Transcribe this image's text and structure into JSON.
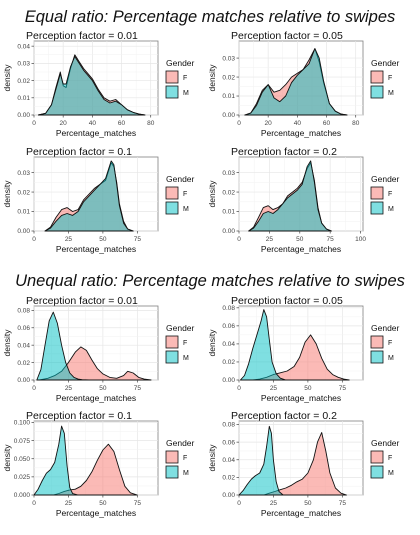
{
  "sections": [
    {
      "title": "Equal ratio: Percentage matches relative to swipes"
    },
    {
      "title": "Unequal ratio: Percentage matches relative to swipes"
    }
  ],
  "colors": {
    "F": "#F8766D",
    "M": "#00BFC4"
  },
  "chart_data": [
    {
      "type": "area",
      "section": 0,
      "title": "Perception factor = 0.01",
      "xlabel": "Percentage_matches",
      "ylabel": "density",
      "xlim": [
        0,
        85
      ],
      "ylim": [
        0,
        0.043
      ],
      "xticks": [
        0,
        20,
        40,
        60,
        80
      ],
      "yticks": [
        0.0,
        0.01,
        0.02,
        0.03,
        0.04
      ],
      "ytick_labels": [
        "0.00",
        "0.01",
        "0.02",
        "0.03",
        "0.04"
      ],
      "legend": {
        "title": "Gender",
        "entries": [
          "F",
          "M"
        ],
        "position": "right"
      },
      "series": [
        {
          "name": "F",
          "x": [
            3,
            8,
            12,
            15,
            18,
            20,
            22,
            25,
            28,
            31,
            34,
            37,
            40,
            44,
            48,
            52,
            56,
            60,
            64,
            68,
            72,
            76
          ],
          "y": [
            0,
            0.001,
            0.006,
            0.016,
            0.025,
            0.017,
            0.016,
            0.027,
            0.035,
            0.031,
            0.027,
            0.024,
            0.021,
            0.015,
            0.01,
            0.008,
            0.009,
            0.006,
            0.003,
            0.0015,
            0.0005,
            0
          ]
        },
        {
          "name": "M",
          "x": [
            3,
            8,
            12,
            15,
            18,
            20,
            22,
            25,
            28,
            31,
            34,
            37,
            40,
            44,
            48,
            52,
            56,
            60,
            64,
            68,
            72,
            76
          ],
          "y": [
            0,
            0.001,
            0.006,
            0.015,
            0.024,
            0.018,
            0.018,
            0.028,
            0.034,
            0.03,
            0.026,
            0.023,
            0.02,
            0.014,
            0.009,
            0.007,
            0.008,
            0.006,
            0.003,
            0.0015,
            0.0005,
            0
          ]
        }
      ]
    },
    {
      "type": "area",
      "section": 0,
      "title": "Perception factor = 0.05",
      "xlabel": "Percentage_matches",
      "ylabel": "density",
      "xlim": [
        0,
        85
      ],
      "ylim": [
        0,
        0.039
      ],
      "xticks": [
        0,
        20,
        40,
        60,
        80
      ],
      "yticks": [
        0.0,
        0.01,
        0.02,
        0.03
      ],
      "ytick_labels": [
        "0.00",
        "0.01",
        "0.02",
        "0.03"
      ],
      "legend": {
        "title": "Gender",
        "entries": [
          "F",
          "M"
        ],
        "position": "right"
      },
      "series": [
        {
          "name": "F",
          "x": [
            4,
            8,
            12,
            16,
            20,
            24,
            28,
            32,
            36,
            40,
            44,
            48,
            52,
            55,
            58,
            62,
            66,
            70,
            74
          ],
          "y": [
            0,
            0.001,
            0.006,
            0.013,
            0.016,
            0.012,
            0.013,
            0.016,
            0.02,
            0.022,
            0.024,
            0.029,
            0.035,
            0.028,
            0.017,
            0.006,
            0.002,
            0.0005,
            0
          ]
        },
        {
          "name": "M",
          "x": [
            4,
            8,
            12,
            16,
            20,
            24,
            28,
            32,
            36,
            40,
            44,
            48,
            52,
            55,
            58,
            62,
            66,
            70,
            74
          ],
          "y": [
            0,
            0.001,
            0.005,
            0.012,
            0.016,
            0.009,
            0.007,
            0.01,
            0.017,
            0.021,
            0.024,
            0.027,
            0.035,
            0.03,
            0.018,
            0.006,
            0.002,
            0.0005,
            0
          ]
        }
      ]
    },
    {
      "type": "area",
      "section": 0,
      "title": "Perception factor = 0.1",
      "xlabel": "Percentage_matches",
      "ylabel": "density",
      "xlim": [
        0,
        90
      ],
      "ylim": [
        0,
        0.038
      ],
      "xticks": [
        0,
        25,
        50,
        75
      ],
      "yticks": [
        0.0,
        0.01,
        0.02,
        0.03
      ],
      "ytick_labels": [
        "0.00",
        "0.01",
        "0.02",
        "0.03"
      ],
      "legend": {
        "title": "Gender",
        "entries": [
          "F",
          "M"
        ],
        "position": "right"
      },
      "series": [
        {
          "name": "F",
          "x": [
            8,
            12,
            16,
            20,
            24,
            28,
            32,
            36,
            40,
            44,
            48,
            52,
            56,
            58,
            60,
            62,
            65,
            68,
            72
          ],
          "y": [
            0,
            0.002,
            0.007,
            0.011,
            0.012,
            0.01,
            0.011,
            0.016,
            0.019,
            0.022,
            0.024,
            0.026,
            0.035,
            0.033,
            0.025,
            0.014,
            0.005,
            0.001,
            0
          ]
        },
        {
          "name": "M",
          "x": [
            8,
            12,
            16,
            20,
            24,
            28,
            32,
            36,
            40,
            44,
            48,
            52,
            56,
            58,
            60,
            62,
            65,
            68,
            72
          ],
          "y": [
            0,
            0.0015,
            0.005,
            0.008,
            0.009,
            0.008,
            0.01,
            0.015,
            0.018,
            0.021,
            0.024,
            0.027,
            0.036,
            0.034,
            0.024,
            0.013,
            0.004,
            0.001,
            0
          ]
        }
      ]
    },
    {
      "type": "area",
      "section": 0,
      "title": "Perception factor = 0.2",
      "xlabel": "Percentage_matches",
      "ylabel": "density",
      "xlim": [
        0,
        102
      ],
      "ylim": [
        0,
        0.038
      ],
      "xticks": [
        0,
        25,
        50,
        75,
        100
      ],
      "yticks": [
        0.0,
        0.01,
        0.02,
        0.03
      ],
      "ytick_labels": [
        "0.00",
        "0.01",
        "0.02",
        "0.03"
      ],
      "legend": {
        "title": "Gender",
        "entries": [
          "F",
          "M"
        ],
        "position": "right"
      },
      "series": [
        {
          "name": "F",
          "x": [
            8,
            12,
            16,
            20,
            24,
            28,
            32,
            36,
            40,
            44,
            48,
            52,
            56,
            59,
            62,
            65,
            68,
            72,
            76
          ],
          "y": [
            0,
            0.002,
            0.007,
            0.012,
            0.013,
            0.011,
            0.012,
            0.014,
            0.018,
            0.02,
            0.022,
            0.025,
            0.032,
            0.035,
            0.026,
            0.012,
            0.004,
            0.001,
            0
          ]
        },
        {
          "name": "M",
          "x": [
            8,
            12,
            16,
            20,
            24,
            28,
            32,
            36,
            40,
            44,
            48,
            52,
            56,
            59,
            62,
            65,
            68,
            72,
            76
          ],
          "y": [
            0,
            0.0015,
            0.005,
            0.009,
            0.01,
            0.009,
            0.011,
            0.014,
            0.017,
            0.019,
            0.021,
            0.024,
            0.033,
            0.036,
            0.025,
            0.011,
            0.004,
            0.001,
            0
          ]
        }
      ]
    },
    {
      "type": "area",
      "section": 1,
      "title": "Perception factor = 0.01",
      "xlabel": "Percentage_matches",
      "ylabel": "density",
      "xlim": [
        0,
        90
      ],
      "ylim": [
        0,
        0.085
      ],
      "xticks": [
        0,
        25,
        50,
        75
      ],
      "yticks": [
        0.0,
        0.02,
        0.04,
        0.06,
        0.08
      ],
      "ytick_labels": [
        "0.00",
        "0.02",
        "0.04",
        "0.06",
        "0.08"
      ],
      "legend": {
        "title": "Gender",
        "entries": [
          "F",
          "M"
        ],
        "position": "right"
      },
      "series": [
        {
          "name": "F",
          "x": [
            4,
            10,
            15,
            20,
            25,
            30,
            34,
            38,
            42,
            46,
            50,
            55,
            60,
            65,
            68,
            72,
            76,
            80,
            85
          ],
          "y": [
            0,
            0.002,
            0.005,
            0.01,
            0.02,
            0.032,
            0.038,
            0.034,
            0.023,
            0.013,
            0.007,
            0.003,
            0.002,
            0.005,
            0.01,
            0.008,
            0.003,
            0.001,
            0
          ]
        },
        {
          "name": "M",
          "x": [
            2,
            5,
            8,
            11,
            14,
            17,
            20,
            23,
            26,
            29,
            32,
            35,
            40
          ],
          "y": [
            0,
            0.012,
            0.04,
            0.068,
            0.078,
            0.065,
            0.04,
            0.02,
            0.008,
            0.003,
            0.001,
            0.0003,
            0
          ]
        }
      ]
    },
    {
      "type": "area",
      "section": 1,
      "title": "Perception factor = 0.05",
      "xlabel": "Percentage_matches",
      "ylabel": "density",
      "xlim": [
        0,
        90
      ],
      "ylim": [
        0,
        0.082
      ],
      "xticks": [
        0,
        25,
        50,
        75
      ],
      "yticks": [
        0.0,
        0.02,
        0.04,
        0.06,
        0.08
      ],
      "ytick_labels": [
        "0.00",
        "0.02",
        "0.04",
        "0.06",
        "0.08"
      ],
      "legend": {
        "title": "Gender",
        "entries": [
          "F",
          "M"
        ],
        "position": "right"
      },
      "series": [
        {
          "name": "F",
          "x": [
            10,
            15,
            20,
            25,
            30,
            35,
            40,
            44,
            48,
            52,
            56,
            60,
            64,
            68,
            72,
            76,
            80
          ],
          "y": [
            0,
            0.001,
            0.003,
            0.006,
            0.008,
            0.01,
            0.015,
            0.025,
            0.042,
            0.05,
            0.04,
            0.024,
            0.012,
            0.006,
            0.003,
            0.001,
            0
          ]
        },
        {
          "name": "M",
          "x": [
            1,
            4,
            7,
            10,
            13,
            16,
            18,
            20,
            22,
            24,
            27,
            30,
            34
          ],
          "y": [
            0,
            0.005,
            0.018,
            0.035,
            0.05,
            0.065,
            0.078,
            0.07,
            0.045,
            0.02,
            0.007,
            0.002,
            0
          ]
        }
      ]
    },
    {
      "type": "area",
      "section": 1,
      "title": "Perception factor = 0.1",
      "xlabel": "Percentage_matches",
      "ylabel": "density",
      "xlim": [
        0,
        90
      ],
      "ylim": [
        0,
        0.102
      ],
      "xticks": [
        0,
        25,
        50,
        75
      ],
      "yticks": [
        0.0,
        0.025,
        0.05,
        0.075,
        0.1
      ],
      "ytick_labels": [
        "0.000",
        "0.025",
        "0.050",
        "0.075",
        "0.100"
      ],
      "legend": {
        "title": "Gender",
        "entries": [
          "F",
          "M"
        ],
        "position": "right"
      },
      "series": [
        {
          "name": "F",
          "x": [
            14,
            18,
            22,
            26,
            30,
            34,
            38,
            42,
            46,
            50,
            54,
            58,
            62,
            66,
            70,
            75
          ],
          "y": [
            0,
            0.002,
            0.005,
            0.007,
            0.008,
            0.012,
            0.02,
            0.032,
            0.048,
            0.062,
            0.07,
            0.06,
            0.035,
            0.012,
            0.003,
            0
          ]
        },
        {
          "name": "M",
          "x": [
            0,
            3,
            6,
            9,
            12,
            15,
            18,
            20,
            22,
            24,
            26,
            28,
            32
          ],
          "y": [
            0,
            0.008,
            0.02,
            0.03,
            0.035,
            0.045,
            0.07,
            0.095,
            0.085,
            0.04,
            0.01,
            0.002,
            0
          ]
        }
      ]
    },
    {
      "type": "area",
      "section": 1,
      "title": "Perception factor = 0.2",
      "xlabel": "Percentage_matches",
      "ylabel": "density",
      "xlim": [
        0,
        90
      ],
      "ylim": [
        0,
        0.084
      ],
      "xticks": [
        0,
        25,
        50,
        75
      ],
      "yticks": [
        0.0,
        0.02,
        0.04,
        0.06,
        0.08
      ],
      "ytick_labels": [
        "0.00",
        "0.02",
        "0.04",
        "0.06",
        "0.08"
      ],
      "legend": {
        "title": "Gender",
        "entries": [
          "F",
          "M"
        ],
        "position": "right"
      },
      "series": [
        {
          "name": "F",
          "x": [
            18,
            22,
            26,
            30,
            34,
            38,
            42,
            46,
            50,
            54,
            57,
            60,
            63,
            66,
            70,
            74,
            78
          ],
          "y": [
            0,
            0.002,
            0.004,
            0.006,
            0.008,
            0.011,
            0.015,
            0.018,
            0.025,
            0.04,
            0.06,
            0.071,
            0.05,
            0.025,
            0.008,
            0.002,
            0
          ]
        },
        {
          "name": "M",
          "x": [
            0,
            3,
            6,
            9,
            12,
            15,
            18,
            20,
            22,
            23.5,
            25,
            27,
            29,
            32
          ],
          "y": [
            0,
            0.005,
            0.012,
            0.018,
            0.022,
            0.025,
            0.035,
            0.055,
            0.078,
            0.07,
            0.04,
            0.015,
            0.004,
            0
          ]
        }
      ]
    }
  ]
}
